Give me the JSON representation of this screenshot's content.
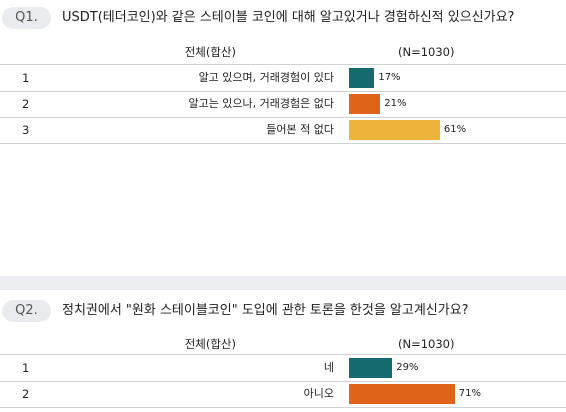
{
  "q1": {
    "pill": "Q1.",
    "question": "USDT(테더코인)와 같은 스테이블 코인에 대해 알고있거나 경험하신적 있으신가요?",
    "total_label": "전체(합산)",
    "n_label": "(N=1030)"
  },
  "q2": {
    "pill": "Q2.",
    "question": "정치권에서 \"원화 스테이블코인\" 도입에 관한 토론을 한것을 알고계신가요?",
    "total_label": "전체(합산)",
    "n_label": "(N=1030)"
  },
  "chart_data": [
    {
      "type": "bar",
      "orientation": "horizontal",
      "categories": [
        "알고 있으며, 거래경험이 있다",
        "알고는 있으나, 거래경험은 없다",
        "들어본 적 없다"
      ],
      "row_numbers": [
        "1",
        "2",
        "3"
      ],
      "values": [
        17,
        21,
        61
      ],
      "value_labels": [
        "17%",
        "21%",
        "61%"
      ],
      "unit": "%",
      "xlim": [
        0,
        100
      ],
      "colors": [
        "#156a6e",
        "#e0631a",
        "#eeb33a"
      ]
    },
    {
      "type": "bar",
      "orientation": "horizontal",
      "categories": [
        "네",
        "아니오"
      ],
      "row_numbers": [
        "1",
        "2"
      ],
      "values": [
        29,
        71
      ],
      "value_labels": [
        "29%",
        "71%"
      ],
      "unit": "%",
      "xlim": [
        0,
        100
      ],
      "colors": [
        "#156a6e",
        "#e0631a"
      ]
    }
  ]
}
